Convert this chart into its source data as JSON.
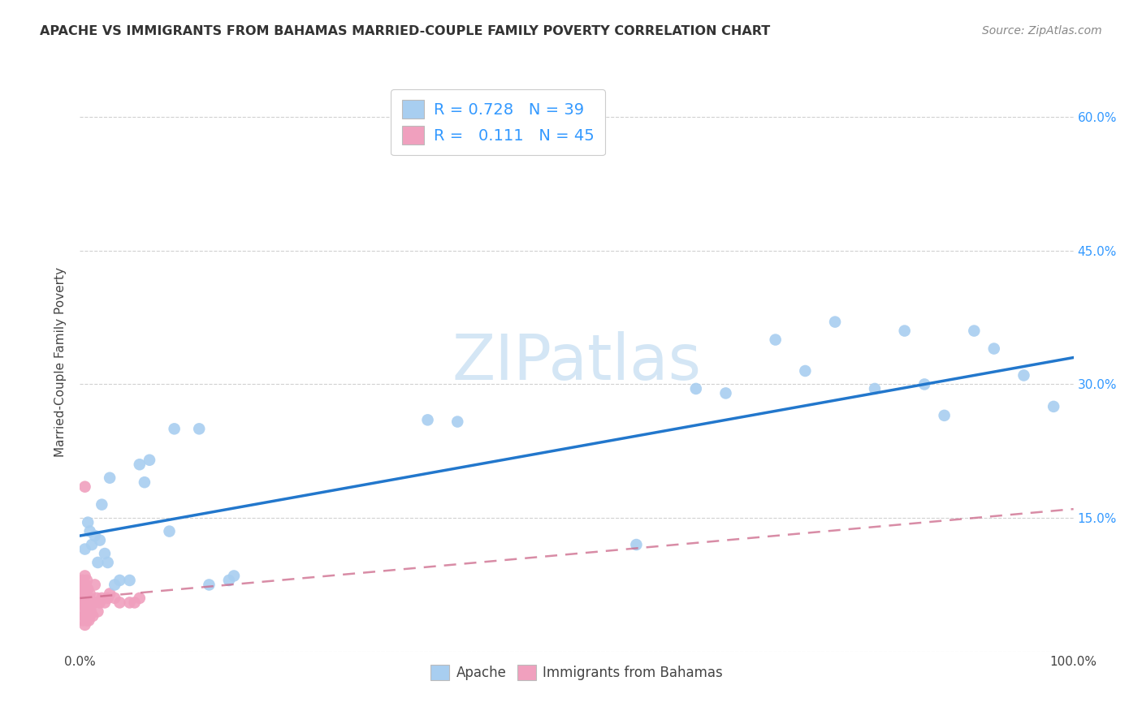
{
  "title": "APACHE VS IMMIGRANTS FROM BAHAMAS MARRIED-COUPLE FAMILY POVERTY CORRELATION CHART",
  "source": "Source: ZipAtlas.com",
  "ylabel": "Married-Couple Family Poverty",
  "xlim": [
    0.0,
    1.0
  ],
  "ylim": [
    0.0,
    0.65
  ],
  "apache_R": "0.728",
  "apache_N": "39",
  "bahamas_R": "0.111",
  "bahamas_N": "45",
  "apache_color": "#a8cef0",
  "apache_line_color": "#2277cc",
  "bahamas_color": "#f0a0be",
  "bahamas_line_color": "#cc6688",
  "legend_text_color": "#3399ff",
  "axis_label_color": "#3399ff",
  "background_color": "#ffffff",
  "watermark_color": "#d0e4f4",
  "grid_color": "#cccccc",
  "apache_x": [
    0.005,
    0.008,
    0.01,
    0.012,
    0.015,
    0.018,
    0.02,
    0.022,
    0.025,
    0.028,
    0.03,
    0.035,
    0.04,
    0.05,
    0.06,
    0.065,
    0.07,
    0.09,
    0.095,
    0.12,
    0.13,
    0.15,
    0.155,
    0.35,
    0.38,
    0.56,
    0.62,
    0.65,
    0.7,
    0.73,
    0.76,
    0.8,
    0.83,
    0.85,
    0.87,
    0.9,
    0.92,
    0.95,
    0.98
  ],
  "apache_y": [
    0.115,
    0.145,
    0.135,
    0.12,
    0.13,
    0.1,
    0.125,
    0.165,
    0.11,
    0.1,
    0.195,
    0.075,
    0.08,
    0.08,
    0.21,
    0.19,
    0.215,
    0.135,
    0.25,
    0.25,
    0.075,
    0.08,
    0.085,
    0.26,
    0.258,
    0.12,
    0.295,
    0.29,
    0.35,
    0.315,
    0.37,
    0.295,
    0.36,
    0.3,
    0.265,
    0.36,
    0.34,
    0.31,
    0.275
  ],
  "bahamas_x": [
    0.0,
    0.001,
    0.001,
    0.002,
    0.002,
    0.002,
    0.003,
    0.003,
    0.003,
    0.004,
    0.004,
    0.004,
    0.005,
    0.005,
    0.005,
    0.005,
    0.006,
    0.006,
    0.007,
    0.007,
    0.007,
    0.008,
    0.008,
    0.009,
    0.009,
    0.01,
    0.01,
    0.011,
    0.012,
    0.013,
    0.015,
    0.015,
    0.017,
    0.018,
    0.02,
    0.022,
    0.025,
    0.028,
    0.03,
    0.035,
    0.04,
    0.05,
    0.055,
    0.06,
    0.005
  ],
  "bahamas_y": [
    0.065,
    0.055,
    0.075,
    0.045,
    0.055,
    0.08,
    0.035,
    0.065,
    0.08,
    0.04,
    0.06,
    0.075,
    0.03,
    0.05,
    0.065,
    0.085,
    0.04,
    0.075,
    0.035,
    0.055,
    0.08,
    0.045,
    0.07,
    0.035,
    0.06,
    0.04,
    0.065,
    0.045,
    0.055,
    0.04,
    0.055,
    0.075,
    0.06,
    0.045,
    0.055,
    0.06,
    0.055,
    0.06,
    0.065,
    0.06,
    0.055,
    0.055,
    0.055,
    0.06,
    0.185
  ],
  "apache_trend_x": [
    0.0,
    1.0
  ],
  "apache_trend_y": [
    0.13,
    0.33
  ],
  "bahamas_trend_x": [
    0.0,
    1.0
  ],
  "bahamas_trend_y": [
    0.06,
    0.16
  ]
}
